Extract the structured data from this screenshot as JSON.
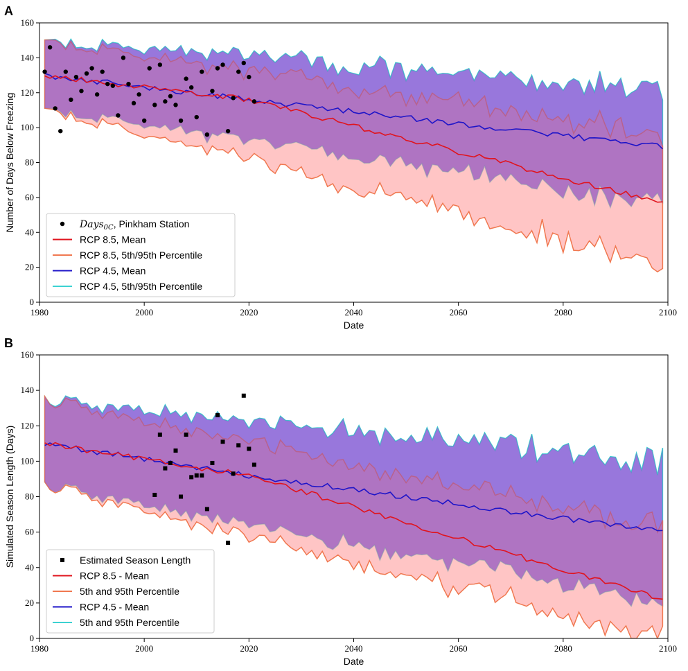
{
  "colors": {
    "rcp85_mean": "#e0141e",
    "rcp85_band": "#ff9e9e",
    "rcp85_band_edge": "#f07850",
    "rcp45_mean": "#1e14c8",
    "rcp45_band": "#a8a8ff",
    "rcp45_band_edge": "#3cd2d2",
    "overlap_opacity": 0.55,
    "obs": "#000000"
  },
  "chart_data": [
    {
      "type": "line",
      "panel": "A",
      "title": "",
      "xlabel": "Date",
      "ylabel": "Number of Days Below Freezing",
      "xlim": [
        1980,
        2100
      ],
      "ylim": [
        0,
        160
      ],
      "xticks": [
        1980,
        2000,
        2020,
        2040,
        2060,
        2080,
        2100
      ],
      "yticks": [
        0,
        20,
        40,
        60,
        80,
        100,
        120,
        140,
        160
      ],
      "legend_position": "lower-left",
      "legend": [
        {
          "label_math": "Days",
          "label_sub": "0C",
          "label_rest": ", Pinkham Station",
          "kind": "marker-circle",
          "color": "#000000"
        },
        {
          "label": "RCP 8.5, Mean",
          "kind": "line",
          "color": "#e0141e"
        },
        {
          "label": "RCP 8.5, 5th/95th Percentile",
          "kind": "line",
          "color": "#f07850"
        },
        {
          "label": "RCP 4.5, Mean",
          "kind": "line",
          "color": "#1e14c8"
        },
        {
          "label": "RCP 4.5, 5th/95th Percentile",
          "kind": "line",
          "color": "#3cd2d2"
        }
      ],
      "rcp85": {
        "mean_start": 130,
        "mean_2020": 116,
        "mean_end": 57,
        "upper_start": 149,
        "upper_end": 97,
        "lower_start": 110,
        "lower_end": 22
      },
      "rcp45": {
        "mean_start": 130,
        "mean_2020": 116,
        "mean_end": 89,
        "upper_start": 149,
        "upper_end": 123,
        "lower_start": 110,
        "lower_end": 57
      },
      "observations": {
        "marker": "circle",
        "x": [
          1981,
          1982,
          1983,
          1984,
          1985,
          1986,
          1987,
          1988,
          1989,
          1990,
          1991,
          1992,
          1993,
          1994,
          1995,
          1996,
          1997,
          1998,
          1999,
          2000,
          2001,
          2002,
          2003,
          2004,
          2005,
          2006,
          2007,
          2008,
          2009,
          2010,
          2011,
          2012,
          2013,
          2014,
          2015,
          2016,
          2017,
          2018,
          2019,
          2020,
          2021
        ],
        "y": [
          132,
          146,
          111,
          98,
          132,
          116,
          129,
          121,
          131,
          134,
          119,
          132,
          125,
          124,
          107,
          140,
          125,
          114,
          119,
          104,
          134,
          113,
          136,
          115,
          118,
          113,
          104,
          128,
          123,
          106,
          132,
          96,
          121,
          134,
          136,
          98,
          117,
          132,
          137,
          129,
          115
        ]
      }
    },
    {
      "type": "line",
      "panel": "B",
      "title": "",
      "xlabel": "Date",
      "ylabel": "Simulated Season Length (Days)",
      "xlim": [
        1980,
        2100
      ],
      "ylim": [
        0,
        160
      ],
      "xticks": [
        1980,
        2000,
        2020,
        2040,
        2060,
        2080,
        2100
      ],
      "yticks": [
        0,
        20,
        40,
        60,
        80,
        100,
        120,
        140,
        160
      ],
      "legend_position": "lower-left",
      "legend": [
        {
          "label": "Estimated Season Length",
          "kind": "marker-square",
          "color": "#000000"
        },
        {
          "label": "RCP 8.5 - Mean",
          "kind": "line",
          "color": "#e0141e"
        },
        {
          "label": "5th and 95th Percentile",
          "kind": "line",
          "color": "#f07850"
        },
        {
          "label": "RCP 4.5 - Mean",
          "kind": "line",
          "color": "#1e14c8"
        },
        {
          "label": "5th and 95th Percentile",
          "kind": "line",
          "color": "#3cd2d2"
        }
      ],
      "rcp85": {
        "mean_start": 110,
        "mean_2020": 92,
        "mean_end": 22,
        "upper_start": 134,
        "upper_end": 63,
        "lower_start": 86,
        "lower_end": 0
      },
      "rcp45": {
        "mean_start": 110,
        "mean_2020": 92,
        "mean_end": 60,
        "upper_start": 134,
        "upper_end": 100,
        "lower_start": 86,
        "lower_end": 20
      },
      "observations": {
        "marker": "square",
        "x": [
          2002,
          2003,
          2004,
          2005,
          2006,
          2007,
          2008,
          2009,
          2010,
          2011,
          2012,
          2013,
          2014,
          2015,
          2016,
          2017,
          2018,
          2019,
          2020,
          2021
        ],
        "y": [
          81,
          115,
          96,
          99,
          106,
          80,
          115,
          91,
          92,
          92,
          73,
          99,
          126,
          111,
          54,
          93,
          109,
          137,
          107,
          98
        ]
      }
    }
  ]
}
